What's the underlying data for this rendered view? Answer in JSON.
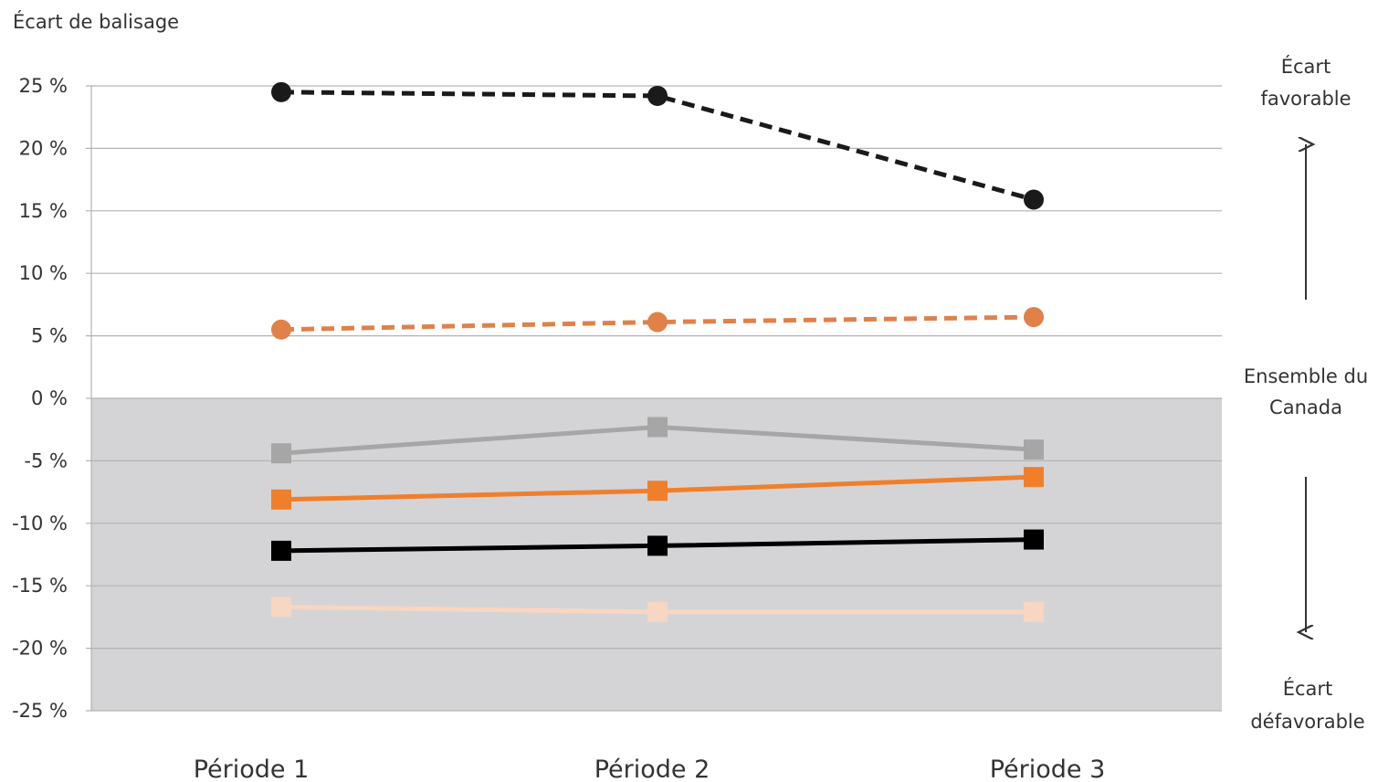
{
  "chart_data": {
    "type": "line",
    "ylabel": "Écart de balisage",
    "xlabel": "",
    "title": "",
    "categories": [
      "Période 1",
      "Période 2",
      "Période 3"
    ],
    "ylim": [
      -25,
      25
    ],
    "yticks": [
      25,
      20,
      15,
      10,
      5,
      0,
      -5,
      -10,
      -15,
      -20,
      -25
    ],
    "ytick_labels": [
      "25 %",
      "20 %",
      "15 %",
      "10 %",
      "5 %",
      "0 %",
      "-5 %",
      "-10 %",
      "-15 %",
      "-20 %",
      "-25 %"
    ],
    "grid": true,
    "negative_region_shaded": true,
    "shade_color": "#d4d4d6",
    "series": [
      {
        "values": [
          24.5,
          24.2,
          15.9
        ],
        "color": "#1a1a1a",
        "dashed": true,
        "marker": "circle"
      },
      {
        "values": [
          5.5,
          6.1,
          6.5
        ],
        "color": "#e0814a",
        "dashed": true,
        "marker": "circle"
      },
      {
        "values": [
          -4.4,
          -2.3,
          -4.1
        ],
        "color": "#a6a6a6",
        "dashed": false,
        "marker": "square"
      },
      {
        "values": [
          -8.1,
          -7.4,
          -6.3
        ],
        "color": "#f07f2b",
        "dashed": false,
        "marker": "square"
      },
      {
        "values": [
          -12.2,
          -11.8,
          -11.3
        ],
        "color": "#000000",
        "dashed": false,
        "marker": "square"
      },
      {
        "values": [
          -16.7,
          -17.1,
          -17.1
        ],
        "color": "#f7d6c2",
        "dashed": false,
        "marker": "square"
      }
    ],
    "annotations": {
      "favorable": [
        "Écart",
        "favorable"
      ],
      "middle": [
        "Ensemble du",
        "Canada"
      ],
      "unfavorable": [
        "Écart",
        "défavorable"
      ]
    }
  }
}
